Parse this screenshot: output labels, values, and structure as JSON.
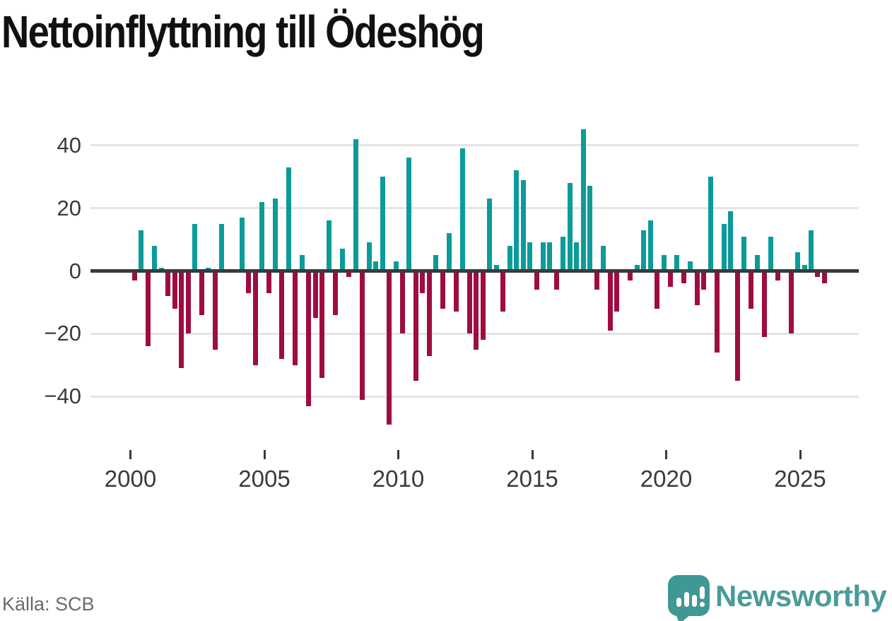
{
  "title": "Nettoinflyttning till Ödeshög",
  "source": "Källa: SCB",
  "brand": {
    "name": "Newsworthy"
  },
  "colors": {
    "positive": "#0b9b99",
    "negative": "#9e0c42",
    "axis": "#3a3a3c",
    "grid": "#e5e5e6",
    "tick_text": "#3a3a3c",
    "title_text": "#111111",
    "source_text": "#6a6a72",
    "brand_bubble": "#3f9894",
    "brand_text": "#4a9b99"
  },
  "chart_data": {
    "type": "bar",
    "title": "Nettoinflyttning till Ödeshög",
    "xlabel": "",
    "ylabel": "",
    "frequency": "quarterly",
    "yticks": [
      40,
      20,
      0,
      -20,
      -40
    ],
    "ytick_labels": [
      "40",
      "20",
      "0",
      "−20",
      "−40"
    ],
    "xticks": [
      2000,
      2005,
      2010,
      2015,
      2020,
      2025
    ],
    "ylim": [
      -52,
      47
    ],
    "grid": true,
    "legend": false,
    "series_by_year": [
      {
        "year": 2000,
        "values": [
          -3,
          13,
          -24,
          8
        ]
      },
      {
        "year": 2001,
        "values": [
          1,
          -8,
          -12,
          -31
        ]
      },
      {
        "year": 2002,
        "values": [
          -20,
          15,
          -14,
          1
        ]
      },
      {
        "year": 2003,
        "values": [
          -25,
          15,
          0,
          0
        ]
      },
      {
        "year": 2004,
        "values": [
          17,
          -7,
          -30,
          22
        ]
      },
      {
        "year": 2005,
        "values": [
          -7,
          23,
          -28,
          33
        ]
      },
      {
        "year": 2006,
        "values": [
          -30,
          5,
          -43,
          -15
        ]
      },
      {
        "year": 2007,
        "values": [
          -34,
          16,
          -14,
          7
        ]
      },
      {
        "year": 2008,
        "values": [
          -2,
          42,
          -41,
          9
        ]
      },
      {
        "year": 2009,
        "values": [
          3,
          30,
          -49,
          3
        ]
      },
      {
        "year": 2010,
        "values": [
          -20,
          36,
          -35,
          -7
        ]
      },
      {
        "year": 2011,
        "values": [
          -27,
          5,
          -12,
          12
        ]
      },
      {
        "year": 2012,
        "values": [
          -13,
          39,
          -20,
          -25
        ]
      },
      {
        "year": 2013,
        "values": [
          -22,
          23,
          2,
          -13
        ]
      },
      {
        "year": 2014,
        "values": [
          8,
          32,
          29,
          9
        ]
      },
      {
        "year": 2015,
        "values": [
          -6,
          9,
          9,
          -6
        ]
      },
      {
        "year": 2016,
        "values": [
          11,
          28,
          9,
          45
        ]
      },
      {
        "year": 2017,
        "values": [
          27,
          -6,
          8,
          -19
        ]
      },
      {
        "year": 2018,
        "values": [
          -13,
          0,
          -3,
          2
        ]
      },
      {
        "year": 2019,
        "values": [
          13,
          16,
          -12,
          5
        ]
      },
      {
        "year": 2020,
        "values": [
          -5,
          5,
          -4,
          3
        ]
      },
      {
        "year": 2021,
        "values": [
          -11,
          -6,
          30,
          -26
        ]
      },
      {
        "year": 2022,
        "values": [
          15,
          19,
          -35,
          11
        ]
      },
      {
        "year": 2023,
        "values": [
          -12,
          5,
          -21,
          11
        ]
      },
      {
        "year": 2024,
        "values": [
          -3,
          0,
          -20,
          6
        ]
      },
      {
        "year": 2025,
        "values": [
          2,
          13,
          -2,
          -4
        ]
      }
    ]
  }
}
